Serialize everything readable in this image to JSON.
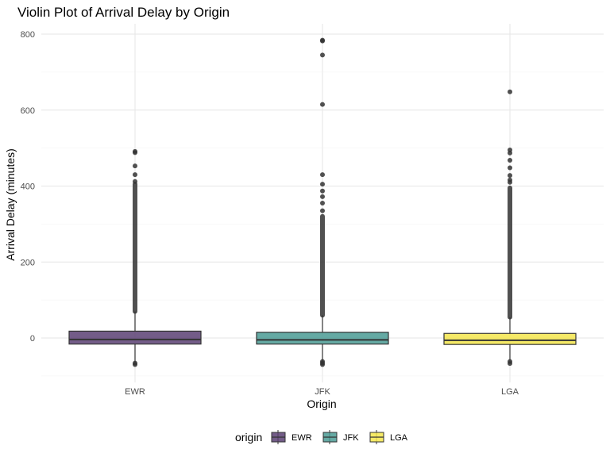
{
  "chart_data": {
    "type": "violin",
    "title": "Violin Plot of Arrival Delay by Origin",
    "xlabel": "Origin",
    "ylabel": "Arrival Delay (minutes)",
    "categories": [
      "EWR",
      "JFK",
      "LGA"
    ],
    "ylim": [
      -100,
      820
    ],
    "yticks": [
      0,
      200,
      400,
      600,
      800
    ],
    "grid": true,
    "legend": {
      "title": "origin",
      "position": "bottom",
      "entries": [
        "EWR",
        "JFK",
        "LGA"
      ]
    },
    "colors": [
      "#5a3f73",
      "#4a9b94",
      "#f5e64c"
    ],
    "series": [
      {
        "name": "EWR",
        "box": {
          "q1": -16,
          "median": -4,
          "q3": 18,
          "whisker_low": -65,
          "whisker_high": 70
        },
        "outlier_band": [
          70,
          405
        ],
        "outliers": [
          -66,
          -70,
          412,
          430,
          453,
          488,
          491
        ]
      },
      {
        "name": "JFK",
        "box": {
          "q1": -16,
          "median": -5,
          "q3": 15,
          "whisker_low": -62,
          "whisker_high": 60
        },
        "outlier_band": [
          60,
          320
        ],
        "outliers": [
          -62,
          -66,
          -70,
          335,
          355,
          372,
          387,
          405,
          430,
          615,
          745,
          782,
          784
        ]
      },
      {
        "name": "LGA",
        "box": {
          "q1": -17,
          "median": -6,
          "q3": 12,
          "whisker_low": -60,
          "whisker_high": 55
        },
        "outlier_band": [
          55,
          395
        ],
        "outliers": [
          -62,
          -67,
          410,
          416,
          428,
          448,
          468,
          487,
          495,
          648
        ]
      }
    ]
  }
}
